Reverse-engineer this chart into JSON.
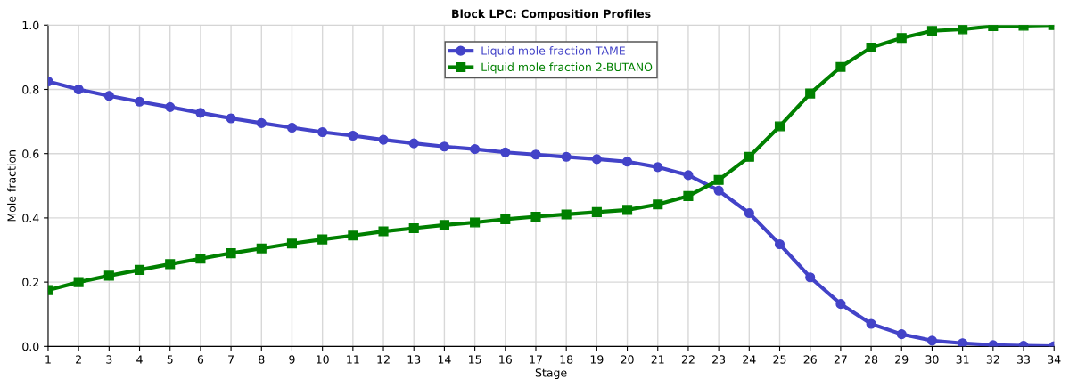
{
  "chart_data": {
    "type": "line",
    "title": "Block LPC: Composition Profiles",
    "xlabel": "Stage",
    "ylabel": "Mole fraction",
    "x": [
      1,
      2,
      3,
      4,
      5,
      6,
      7,
      8,
      9,
      10,
      11,
      12,
      13,
      14,
      15,
      16,
      17,
      18,
      19,
      20,
      21,
      22,
      23,
      24,
      25,
      26,
      27,
      28,
      29,
      30,
      31,
      32,
      33,
      34
    ],
    "series": [
      {
        "name": "Liquid mole fraction TAME",
        "color": "#4343c8",
        "marker": "circle",
        "values": [
          0.825,
          0.8,
          0.78,
          0.762,
          0.745,
          0.727,
          0.71,
          0.695,
          0.681,
          0.667,
          0.656,
          0.643,
          0.632,
          0.622,
          0.614,
          0.604,
          0.597,
          0.59,
          0.583,
          0.575,
          0.558,
          0.533,
          0.485,
          0.415,
          0.318,
          0.215,
          0.132,
          0.07,
          0.038,
          0.018,
          0.01,
          0.004,
          0.002,
          0.001
        ]
      },
      {
        "name": "Liquid mole fraction 2-BUTANO",
        "color": "#008000",
        "marker": "square",
        "values": [
          0.175,
          0.2,
          0.22,
          0.238,
          0.256,
          0.273,
          0.29,
          0.305,
          0.32,
          0.333,
          0.345,
          0.358,
          0.368,
          0.378,
          0.386,
          0.396,
          0.404,
          0.411,
          0.418,
          0.425,
          0.442,
          0.468,
          0.518,
          0.59,
          0.685,
          0.787,
          0.87,
          0.93,
          0.96,
          0.982,
          0.987,
          0.997,
          0.998,
          1.0
        ]
      }
    ],
    "xlim": [
      1,
      34
    ],
    "xticks": [
      1,
      2,
      3,
      4,
      5,
      6,
      7,
      8,
      9,
      10,
      11,
      12,
      13,
      14,
      15,
      16,
      17,
      18,
      19,
      20,
      21,
      22,
      23,
      24,
      25,
      26,
      27,
      28,
      29,
      30,
      31,
      32,
      33,
      34
    ],
    "ylim": [
      0,
      1
    ],
    "yticks": [
      {
        "value": 0,
        "label": "0.0"
      },
      {
        "value": 0.2,
        "label": "0.2"
      },
      {
        "value": 0.4,
        "label": "0.4"
      },
      {
        "value": 0.6,
        "label": "0.6"
      },
      {
        "value": 0.8,
        "label": "0.8"
      },
      {
        "value": 1,
        "label": "1.0"
      }
    ],
    "grid": true,
    "legend": "top",
    "line_style": "solid"
  }
}
